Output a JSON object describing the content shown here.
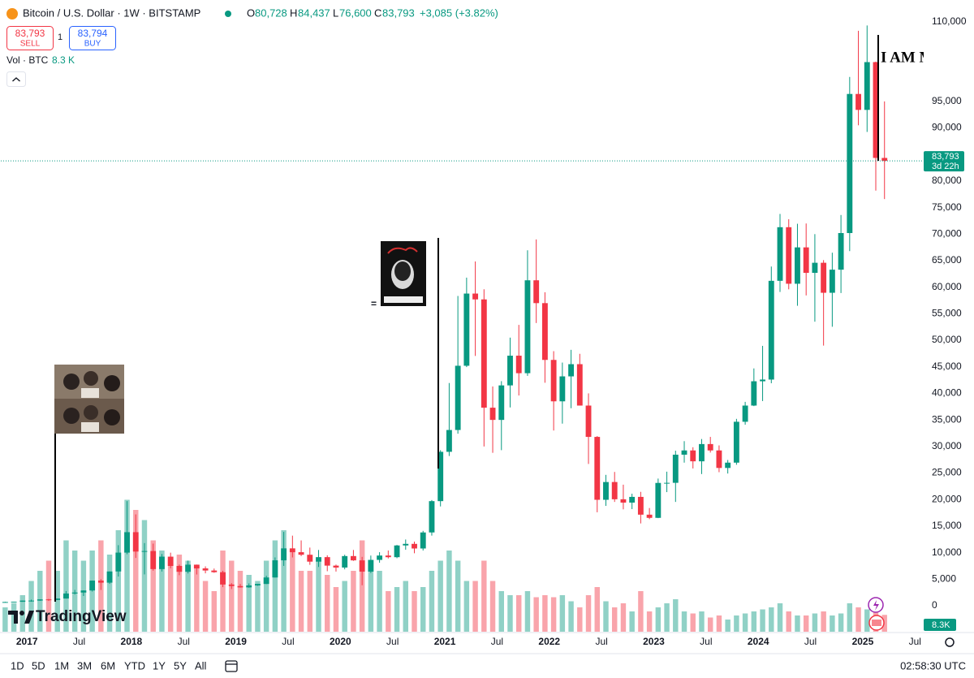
{
  "header": {
    "symbol": "Bitcoin / U.S. Dollar · 1W · BITSTAMP",
    "o_label": "O",
    "open": "80,728",
    "h_label": "H",
    "high": "84,437",
    "l_label": "L",
    "low": "76,600",
    "c_label": "C",
    "close": "83,793",
    "change": "+3,085 (+3.82%)"
  },
  "trade": {
    "sell_price": "83,793",
    "sell": "SELL",
    "qty": "1",
    "buy_price": "83,794",
    "buy": "BUY"
  },
  "volume_legend": {
    "label": "Vol · BTC",
    "value": "8.3 K"
  },
  "branding": "TradingView",
  "toolbar": {
    "ranges": [
      "1D",
      "5D",
      "1M",
      "3M",
      "6M",
      "YTD",
      "1Y",
      "5Y",
      "All"
    ],
    "time": "02:58:30 UTC"
  },
  "chart_data": {
    "type": "candlestick",
    "x": [
      "2016-10",
      "2016-11",
      "2016-12",
      "2017-01",
      "2017-02",
      "2017-03",
      "2017-04",
      "2017-05",
      "2017-06",
      "2017-07",
      "2017-08",
      "2017-09",
      "2017-10",
      "2017-11",
      "2017-12",
      "2018-01",
      "2018-02",
      "2018-03",
      "2018-04",
      "2018-05",
      "2018-06",
      "2018-07",
      "2018-08",
      "2018-09",
      "2018-10",
      "2018-11",
      "2018-12",
      "2019-01",
      "2019-02",
      "2019-03",
      "2019-04",
      "2019-05",
      "2019-06",
      "2019-07",
      "2019-08",
      "2019-09",
      "2019-10",
      "2019-11",
      "2019-12",
      "2020-01",
      "2020-02",
      "2020-03",
      "2020-04",
      "2020-05",
      "2020-06",
      "2020-07",
      "2020-08",
      "2020-09",
      "2020-10",
      "2020-11",
      "2020-12",
      "2021-01",
      "2021-02",
      "2021-03",
      "2021-04",
      "2021-05",
      "2021-06",
      "2021-07",
      "2021-08",
      "2021-09",
      "2021-10",
      "2021-11",
      "2021-12",
      "2022-01",
      "2022-02",
      "2022-03",
      "2022-04",
      "2022-05",
      "2022-06",
      "2022-07",
      "2022-08",
      "2022-09",
      "2022-10",
      "2022-11",
      "2022-12",
      "2023-01",
      "2023-02",
      "2023-03",
      "2023-04",
      "2023-05",
      "2023-06",
      "2023-07",
      "2023-08",
      "2023-09",
      "2023-10",
      "2023-11",
      "2023-12",
      "2024-01",
      "2024-02",
      "2024-03",
      "2024-04",
      "2024-05",
      "2024-06",
      "2024-07",
      "2024-08",
      "2024-09",
      "2024-10",
      "2024-11",
      "2024-12",
      "2025-01",
      "2025-02",
      "2025-03"
    ],
    "open": [
      610,
      700,
      745,
      965,
      965,
      1190,
      1080,
      1350,
      2300,
      2480,
      2870,
      4730,
      4340,
      6450,
      10000,
      13850,
      10200,
      10300,
      6900,
      9240,
      7490,
      6390,
      7730,
      7030,
      6630,
      6310,
      3990,
      3700,
      3450,
      3820,
      4100,
      5320,
      8550,
      10800,
      10080,
      9600,
      8300,
      9150,
      7550,
      7190,
      9350,
      8540,
      6420,
      8630,
      9450,
      9140,
      11350,
      11650,
      10780,
      13800,
      19700,
      28990,
      33100,
      45200,
      58800,
      57700,
      37300,
      35000,
      41500,
      47100,
      43800,
      61300,
      57000,
      46300,
      38500,
      43200,
      45500,
      37700,
      31800,
      19950,
      23300,
      20050,
      19420,
      20500,
      17150,
      16550,
      23130,
      23150,
      28450,
      29250,
      27200,
      30450,
      29250,
      25950,
      26950,
      34650,
      37700,
      42280,
      42600,
      61200,
      71300,
      60650,
      67500,
      62700,
      64600,
      58950,
      63300,
      70200,
      96400,
      93400,
      102400,
      84350
    ],
    "high": [
      740,
      755,
      975,
      1150,
      1200,
      1290,
      1350,
      2760,
      2980,
      2900,
      4750,
      5000,
      6450,
      11400,
      19700,
      17200,
      11800,
      11700,
      9750,
      9990,
      7750,
      8500,
      7750,
      7410,
      7000,
      6580,
      4250,
      4100,
      4200,
      4100,
      5650,
      9100,
      13900,
      13200,
      12300,
      10950,
      10500,
      9500,
      7750,
      9600,
      10500,
      9200,
      9450,
      10080,
      10400,
      11450,
      12470,
      12080,
      14100,
      19900,
      29300,
      41950,
      58350,
      61800,
      64850,
      59600,
      41300,
      42300,
      50500,
      52900,
      66950,
      69000,
      59050,
      47950,
      45800,
      48200,
      47450,
      40000,
      31950,
      24650,
      25200,
      22800,
      21100,
      21450,
      18400,
      23950,
      25250,
      29200,
      31000,
      29850,
      31400,
      31800,
      30200,
      27450,
      35200,
      38400,
      44700,
      48950,
      63900,
      73800,
      72800,
      71950,
      72000,
      70000,
      65100,
      66500,
      73600,
      99600,
      108300,
      109300,
      102500,
      95000
    ],
    "low": [
      605,
      690,
      740,
      750,
      920,
      900,
      1060,
      1340,
      2100,
      1830,
      2670,
      2970,
      4110,
      5500,
      9700,
      9000,
      5900,
      6600,
      6450,
      7050,
      5750,
      6070,
      5880,
      6100,
      6200,
      3500,
      3150,
      3400,
      3380,
      3750,
      4070,
      5300,
      7500,
      9100,
      9350,
      7700,
      7300,
      6500,
      6430,
      6850,
      8450,
      3850,
      6150,
      8100,
      8900,
      8950,
      10550,
      9880,
      10400,
      13200,
      18700,
      28200,
      32400,
      44950,
      47050,
      30000,
      28800,
      29300,
      37350,
      39600,
      43300,
      53250,
      42000,
      33000,
      34300,
      37200,
      37700,
      26700,
      17600,
      18800,
      19550,
      18150,
      18200,
      15500,
      16300,
      16500,
      21400,
      19550,
      26950,
      25850,
      24800,
      28850,
      25150,
      24900,
      26550,
      34100,
      37600,
      38550,
      41900,
      59100,
      59600,
      56500,
      58450,
      53500,
      49000,
      52550,
      58900,
      66800,
      90500,
      89250,
      78200,
      76600
    ],
    "close": [
      700,
      745,
      965,
      965,
      1190,
      1080,
      1350,
      2300,
      2480,
      2870,
      4730,
      4340,
      6450,
      10000,
      13850,
      10200,
      10300,
      6900,
      9240,
      7490,
      6390,
      7730,
      7030,
      6630,
      6310,
      3990,
      3700,
      3450,
      3820,
      4100,
      5320,
      8550,
      10800,
      10080,
      9600,
      8300,
      9150,
      7550,
      7190,
      9350,
      8540,
      6420,
      8630,
      9450,
      9140,
      11350,
      11650,
      10780,
      13800,
      19700,
      28990,
      33100,
      45200,
      58800,
      57700,
      37300,
      35000,
      41500,
      47100,
      43800,
      61300,
      57000,
      46300,
      38500,
      43200,
      45500,
      37700,
      31800,
      19950,
      23300,
      20050,
      19420,
      20500,
      17150,
      16550,
      23130,
      23150,
      28450,
      29250,
      27200,
      30450,
      29250,
      25950,
      26950,
      34650,
      37700,
      42280,
      42600,
      61200,
      71300,
      60650,
      67500,
      62700,
      64600,
      58950,
      63300,
      70200,
      96400,
      93400,
      102400,
      84350,
      83793
    ],
    "volume": [
      12,
      14,
      18,
      25,
      30,
      35,
      30,
      45,
      40,
      35,
      40,
      45,
      38,
      50,
      65,
      60,
      55,
      45,
      40,
      35,
      38,
      35,
      32,
      25,
      20,
      40,
      35,
      30,
      28,
      25,
      35,
      45,
      50,
      40,
      30,
      30,
      35,
      28,
      22,
      25,
      30,
      45,
      30,
      30,
      20,
      22,
      25,
      20,
      22,
      30,
      35,
      40,
      35,
      25,
      25,
      35,
      25,
      20,
      18,
      18,
      20,
      17,
      18,
      17,
      18,
      15,
      12,
      18,
      22,
      15,
      12,
      14,
      10,
      20,
      10,
      12,
      14,
      16,
      10,
      9,
      10,
      7,
      8,
      6,
      8,
      9,
      10,
      11,
      12,
      14,
      10,
      8,
      8,
      9,
      10,
      8,
      9,
      14,
      12,
      11,
      10,
      8.3
    ],
    "up_color": "#089981",
    "down_color": "#f23645",
    "xlim": [
      "2016-10",
      "2025-08"
    ],
    "xticks": [
      {
        "value": "2017-01",
        "label": "2017"
      },
      {
        "value": "2017-07",
        "label": "Jul"
      },
      {
        "value": "2018-01",
        "label": "2018"
      },
      {
        "value": "2018-07",
        "label": "Jul"
      },
      {
        "value": "2019-01",
        "label": "2019"
      },
      {
        "value": "2019-07",
        "label": "Jul"
      },
      {
        "value": "2020-01",
        "label": "2020"
      },
      {
        "value": "2020-07",
        "label": "Jul"
      },
      {
        "value": "2021-01",
        "label": "2021"
      },
      {
        "value": "2021-07",
        "label": "Jul"
      },
      {
        "value": "2022-01",
        "label": "2022"
      },
      {
        "value": "2022-07",
        "label": "Jul"
      },
      {
        "value": "2023-01",
        "label": "2023"
      },
      {
        "value": "2023-07",
        "label": "Jul"
      },
      {
        "value": "2024-01",
        "label": "2024"
      },
      {
        "value": "2024-07",
        "label": "Jul"
      },
      {
        "value": "2025-01",
        "label": "2025"
      },
      {
        "value": "2025-07",
        "label": "Jul"
      }
    ],
    "ylim": [
      -4900,
      114100
    ],
    "yticks": [
      0,
      {
        "value": 5000,
        "label": "5,000"
      },
      {
        "value": 10000,
        "label": "10,000"
      },
      {
        "value": 15000,
        "label": "15,000"
      },
      {
        "value": 20000,
        "label": "20,000"
      },
      {
        "value": 25000,
        "label": "25,000"
      },
      {
        "value": 30000,
        "label": "30,000"
      },
      {
        "value": 35000,
        "label": "35,000"
      },
      {
        "value": 40000,
        "label": "40,000"
      },
      {
        "value": 45000,
        "label": "45,000"
      },
      {
        "value": 50000,
        "label": "50,000"
      },
      {
        "value": 55000,
        "label": "55,000"
      },
      {
        "value": 60000,
        "label": "60,000"
      },
      {
        "value": 65000,
        "label": "65,000"
      },
      {
        "value": 70000,
        "label": "70,000"
      },
      {
        "value": 75000,
        "label": "75,000"
      },
      {
        "value": 80000,
        "label": "80,000"
      },
      {
        "value": 90000,
        "label": "90,000"
      },
      {
        "value": 95000,
        "label": "95,000"
      },
      {
        "value": 110000,
        "label": "110,000"
      }
    ],
    "grid": false,
    "volume_lim": [
      0,
      80
    ],
    "last_price": {
      "value": 83793,
      "label": "83,793"
    },
    "countdown": "3d 22h",
    "last_volume_label": "8.3K",
    "annotations": [
      "I AM MUSIC",
      "="
    ]
  }
}
